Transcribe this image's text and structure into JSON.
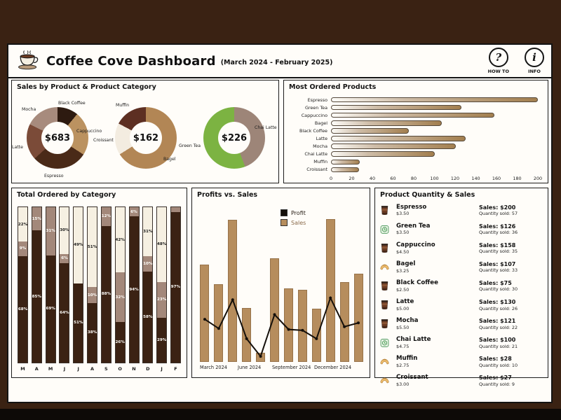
{
  "header": {
    "title": "Coffee Cove Dashboard",
    "subtitle": "(March 2024 - February 2025)",
    "howto": {
      "glyph": "?",
      "label": "HOW TO"
    },
    "info": {
      "glyph": "i",
      "label": "INFO"
    }
  },
  "labels": {
    "sales_prefix": "Sales:",
    "qty_prefix": "Quantity sold:"
  },
  "colors": {
    "background": "#3a2213",
    "panel": "#fffdf9",
    "sales_bar": "#b68d5d",
    "profit_line": "#140f0a",
    "stacked_dark": "#3b2213",
    "stacked_rosy": "#a3887a",
    "stacked_cream": "#f6f0e2"
  },
  "chart_data": [
    {
      "type": "pie",
      "title": "Sales by Product & Product Category",
      "donuts": [
        {
          "center": "$683",
          "slices": [
            {
              "label": "Black Coffee",
              "value": 75,
              "color": "#2d1a10",
              "pos": "top"
            },
            {
              "label": "Cappuccino",
              "value": 158,
              "color": "#bb9260",
              "pos": "right"
            },
            {
              "label": "Espresso",
              "value": 200,
              "color": "#4a2a18",
              "pos": "bottom"
            },
            {
              "label": "Latte",
              "value": 130,
              "color": "#7b4b38",
              "pos": "left"
            },
            {
              "label": "Mocha",
              "value": 121,
              "color": "#a78b7d",
              "pos": "top-left"
            }
          ]
        },
        {
          "center": "$162",
          "slices": [
            {
              "label": "Bagel",
              "value": 107,
              "color": "#b28655",
              "pos": "bottom-right"
            },
            {
              "label": "Croissant",
              "value": 27,
              "color": "#f3ece0",
              "pos": "left"
            },
            {
              "label": "Muffin",
              "value": 28,
              "color": "#5d2f22",
              "pos": "top"
            }
          ]
        },
        {
          "center": "$226",
          "slices": [
            {
              "label": "Chai Latte",
              "value": 100,
              "color": "#9d8578",
              "pos": "right"
            },
            {
              "label": "Green Tea",
              "value": 126,
              "color": "#7cb342",
              "pos": "left"
            }
          ]
        }
      ]
    },
    {
      "type": "bar",
      "orientation": "horizontal",
      "title": "Most Ordered Products",
      "categories": [
        "Espresso",
        "Green Tea",
        "Cappuccino",
        "Bagel",
        "Black Coffee",
        "Latte",
        "Mocha",
        "Chai Latte",
        "Muffin",
        "Croissant"
      ],
      "values": [
        200,
        126,
        158,
        107,
        75,
        130,
        121,
        100,
        28,
        27
      ],
      "xlim": [
        0,
        200
      ],
      "xticks": [
        0,
        20,
        40,
        60,
        80,
        100,
        120,
        140,
        160,
        180,
        200
      ]
    },
    {
      "type": "bar",
      "stacked": true,
      "percent": true,
      "title": "Total Ordered by Category",
      "categories": [
        "M",
        "A",
        "M",
        "J",
        "J",
        "A",
        "S",
        "O",
        "N",
        "D",
        "J",
        "F"
      ],
      "series": [
        {
          "name": "dark-brown",
          "color": "#3b2213",
          "values": [
            68,
            85,
            69,
            64,
            51,
            38,
            88,
            26,
            94,
            58,
            29,
            97
          ]
        },
        {
          "name": "rosy-brown",
          "color": "#a3887a",
          "values": [
            9,
            15,
            31,
            6,
            0,
            10,
            12,
            32,
            6,
            10,
            23,
            3
          ]
        },
        {
          "name": "cream",
          "color": "#f6f0e2",
          "values": [
            22,
            0,
            0,
            30,
            49,
            51,
            0,
            42,
            0,
            31,
            48,
            0
          ]
        }
      ]
    },
    {
      "type": "bar+line",
      "title": "Profits vs. Sales",
      "x_labels_shown": [
        "March 2024",
        "June 2024",
        "September 2024",
        "December 2024"
      ],
      "ylim": [
        0,
        160
      ],
      "legend_position": "top-center",
      "series": [
        {
          "name": "Sales",
          "type": "bar",
          "color": "#b68d5d",
          "values": [
            105,
            84,
            153,
            58,
            10,
            112,
            79,
            78,
            57,
            154,
            86,
            95
          ]
        },
        {
          "name": "Profit",
          "type": "line",
          "color": "#140f0a",
          "values": [
            46,
            36,
            67,
            25,
            6,
            51,
            35,
            34,
            25,
            69,
            38,
            42
          ]
        }
      ]
    },
    {
      "type": "table",
      "title": "Product Quantity & Sales",
      "rows": [
        {
          "name": "Espresso",
          "price": "$3.50",
          "sales": "$200",
          "quantity_sold": 57,
          "icon": "coffee-cup"
        },
        {
          "name": "Green Tea",
          "price": "$3.50",
          "sales": "$126",
          "quantity_sold": 36,
          "icon": "tea-cup"
        },
        {
          "name": "Cappuccino",
          "price": "$4.50",
          "sales": "$158",
          "quantity_sold": 35,
          "icon": "coffee-cup"
        },
        {
          "name": "Bagel",
          "price": "$3.25",
          "sales": "$107",
          "quantity_sold": 33,
          "icon": "croissant"
        },
        {
          "name": "Black Coffee",
          "price": "$2.50",
          "sales": "$75",
          "quantity_sold": 30,
          "icon": "coffee-cup"
        },
        {
          "name": "Latte",
          "price": "$5.00",
          "sales": "$130",
          "quantity_sold": 26,
          "icon": "coffee-cup"
        },
        {
          "name": "Mocha",
          "price": "$5.50",
          "sales": "$121",
          "quantity_sold": 22,
          "icon": "coffee-cup"
        },
        {
          "name": "Chai Latte",
          "price": "$4.75",
          "sales": "$100",
          "quantity_sold": 21,
          "icon": "tea-cup"
        },
        {
          "name": "Muffin",
          "price": "$2.75",
          "sales": "$28",
          "quantity_sold": 10,
          "icon": "croissant"
        },
        {
          "name": "Croissant",
          "price": "$3.00",
          "sales": "$27",
          "quantity_sold": 9,
          "icon": "croissant"
        }
      ]
    }
  ]
}
